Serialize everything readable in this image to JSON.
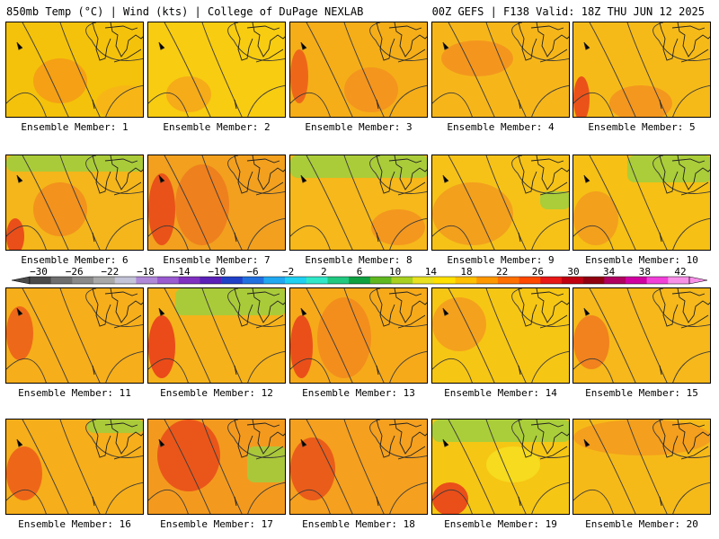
{
  "header": {
    "left": "850mb Temp (°C) | Wind (kts) | College of DuPage NEXLAB",
    "right": "00Z GEFS | F138 Valid: 18Z THU JUN 12 2025"
  },
  "panels": [
    {
      "label": "Ensemble Member: 1"
    },
    {
      "label": "Ensemble Member: 2"
    },
    {
      "label": "Ensemble Member: 3"
    },
    {
      "label": "Ensemble Member: 4"
    },
    {
      "label": "Ensemble Member: 5"
    },
    {
      "label": "Ensemble Member: 6"
    },
    {
      "label": "Ensemble Member: 7"
    },
    {
      "label": "Ensemble Member: 8"
    },
    {
      "label": "Ensemble Member: 9"
    },
    {
      "label": "Ensemble Member: 10"
    },
    {
      "label": "Ensemble Member: 11"
    },
    {
      "label": "Ensemble Member: 12"
    },
    {
      "label": "Ensemble Member: 13"
    },
    {
      "label": "Ensemble Member: 14"
    },
    {
      "label": "Ensemble Member: 15"
    },
    {
      "label": "Ensemble Member: 16"
    },
    {
      "label": "Ensemble Member: 17"
    },
    {
      "label": "Ensemble Member: 18"
    },
    {
      "label": "Ensemble Member: 19"
    },
    {
      "label": "Ensemble Member: 20"
    }
  ],
  "colorbar": {
    "labels": [
      "-30",
      "-26",
      "-22",
      "-18",
      "-14",
      "-10",
      "-6",
      "-2",
      "2",
      "6",
      "10",
      "14",
      "18",
      "22",
      "26",
      "30",
      "34",
      "38",
      "42"
    ],
    "colors": [
      "#4a4a4a",
      "#6e6e6e",
      "#8a8a8a",
      "#a8a8a8",
      "#c4c4d8",
      "#b088d8",
      "#9a5ad0",
      "#8030c0",
      "#5a20b8",
      "#2040c8",
      "#2070e0",
      "#20a8f0",
      "#20d0f0",
      "#30e8c8",
      "#20c880",
      "#10a040",
      "#60b820",
      "#a8d020",
      "#e8e020",
      "#ffe000",
      "#ffc000",
      "#ff9800",
      "#ff7000",
      "#ff4800",
      "#e81818",
      "#c00010",
      "#900010",
      "#b00060",
      "#d000a0",
      "#f040d8",
      "#f890e8"
    ]
  },
  "palette": {
    "warm_orange": "#f6a81c",
    "yellow": "#f8d000",
    "green": "#8cc63c",
    "red": "#e83020"
  }
}
